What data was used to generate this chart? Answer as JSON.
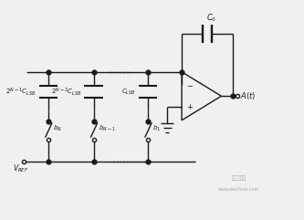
{
  "bg_color": "#f0f0f0",
  "line_color": "#1a1a1a",
  "dot_color": "#1a1a1a",
  "text_color": "#1a1a1a",
  "fig_width": 3.33,
  "fig_height": 2.41,
  "dpi": 100,
  "watermark_line1": "电子发烧友",
  "watermark_line2": "www.elecfans.com",
  "cap_labels": [
    "$2^{N-1}C_{LSB}$",
    "$2^{N-2}C_{LSB}$",
    "$C_{LSB}$"
  ],
  "b_labels": [
    "$b_N$",
    "$b_{N-1}$",
    "$b_1$"
  ],
  "c0_label": "$C_0$",
  "at_label": "$A(t)$",
  "vref_label": "$V_{REF}$"
}
